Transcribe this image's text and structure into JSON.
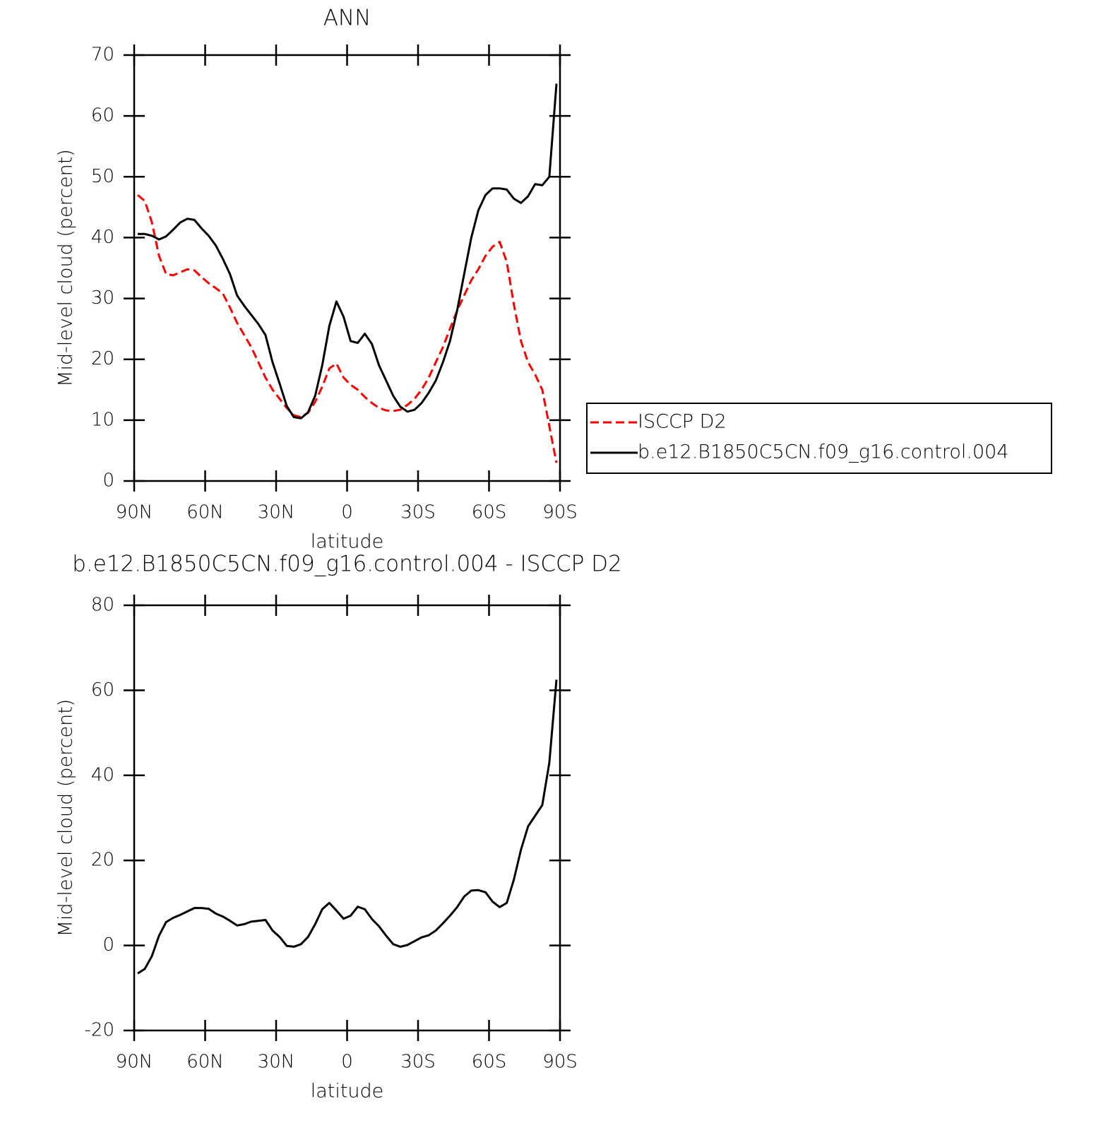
{
  "chart_data": [
    {
      "type": "line",
      "title": "ANN",
      "xlabel": "latitude",
      "ylabel": "Mid-level cloud (percent)",
      "x": [
        88.5,
        85.5,
        82.5,
        79.5,
        76.5,
        73.5,
        70.5,
        67.5,
        64.5,
        61.5,
        58.5,
        55.5,
        52.5,
        49.5,
        46.5,
        43.5,
        40.5,
        37.5,
        34.5,
        31.5,
        28.5,
        25.5,
        22.5,
        19.5,
        16.5,
        13.5,
        10.5,
        7.5,
        4.5,
        1.5,
        -1.5,
        -4.5,
        -7.5,
        -10.5,
        -13.5,
        -16.5,
        -19.5,
        -22.5,
        -25.5,
        -28.5,
        -31.5,
        -34.5,
        -37.5,
        -40.5,
        -43.5,
        -46.5,
        -49.5,
        -52.5,
        -55.5,
        -58.5,
        -61.5,
        -64.5,
        -67.5,
        -70.5,
        -73.5,
        -76.5,
        -79.5,
        -82.5,
        -85.5,
        -88.5
      ],
      "series": [
        {
          "name": "ISCCP D2",
          "color": "#ff0000",
          "style": "dashed",
          "values": [
            47,
            46,
            42.5,
            37,
            34,
            33.8,
            34.3,
            34.8,
            34.6,
            33.5,
            32.5,
            31.7,
            30.8,
            28.5,
            26,
            24,
            22,
            19.5,
            17,
            15,
            13.5,
            12,
            10.8,
            10.5,
            11.2,
            13,
            15.5,
            18.5,
            19.3,
            17,
            15.8,
            15,
            13.8,
            12.8,
            12,
            11.6,
            11.5,
            11.7,
            12.5,
            13.5,
            15,
            17,
            19.5,
            22,
            25,
            28,
            30.5,
            33,
            34.8,
            37,
            38.5,
            39.3,
            36,
            29,
            23,
            19.5,
            17.5,
            15,
            9,
            3
          ]
        },
        {
          "name": "b.e12.B1850C5CN.f09_g16.control.004",
          "color": "#000000",
          "style": "solid",
          "values": [
            40.6,
            40.6,
            40.3,
            39.7,
            40.2,
            41.3,
            42.5,
            43.1,
            42.9,
            41.5,
            40.3,
            38.7,
            36.5,
            34,
            30.5,
            28.8,
            27.3,
            25.8,
            24,
            19.5,
            16,
            12.3,
            10.5,
            10.3,
            11.3,
            14,
            19,
            25.5,
            29.5,
            27,
            23,
            22.7,
            24.2,
            22.5,
            19,
            16.5,
            14,
            12.2,
            11.4,
            11.7,
            12.8,
            14.5,
            16.5,
            19.5,
            23,
            28,
            34,
            40,
            44.5,
            47,
            48.1,
            48.1,
            47.9,
            46.4,
            45.7,
            46.8,
            48.8,
            48.6,
            50,
            65.3
          ]
        }
      ],
      "xlim": [
        90,
        -90
      ],
      "xticks": [
        {
          "value": 90,
          "label": "90N"
        },
        {
          "value": 60,
          "label": "60N"
        },
        {
          "value": 30,
          "label": "30N"
        },
        0,
        {
          "value": -30,
          "label": "30S"
        },
        {
          "value": -60,
          "label": "60S"
        },
        {
          "value": -90,
          "label": "90S"
        }
      ],
      "ylim": [
        0,
        70
      ],
      "yticks": [
        0,
        10,
        20,
        30,
        40,
        50,
        60,
        70
      ],
      "legend": "right"
    },
    {
      "type": "line",
      "title": "b.e12.B1850C5CN.f09_g16.control.004 - ISCCP D2",
      "xlabel": "latitude",
      "ylabel": "Mid-level cloud (percent)",
      "x": [
        88.5,
        85.5,
        82.5,
        79.5,
        76.5,
        73.5,
        70.5,
        67.5,
        64.5,
        61.5,
        58.5,
        55.5,
        52.5,
        49.5,
        46.5,
        43.5,
        40.5,
        37.5,
        34.5,
        31.5,
        28.5,
        25.5,
        22.5,
        19.5,
        16.5,
        13.5,
        10.5,
        7.5,
        4.5,
        1.5,
        -1.5,
        -4.5,
        -7.5,
        -10.5,
        -13.5,
        -16.5,
        -19.5,
        -22.5,
        -25.5,
        -28.5,
        -31.5,
        -34.5,
        -37.5,
        -40.5,
        -43.5,
        -46.5,
        -49.5,
        -52.5,
        -55.5,
        -58.5,
        -61.5,
        -64.5,
        -67.5,
        -70.5,
        -73.5,
        -76.5,
        -79.5,
        -82.5,
        -85.5,
        -88.5
      ],
      "values": [
        -6.6,
        -5.5,
        -2.5,
        2.3,
        5.5,
        6.5,
        7.2,
        8,
        8.8,
        8.8,
        8.6,
        7.5,
        6.8,
        5.8,
        4.7,
        5,
        5.6,
        5.8,
        6,
        3.5,
        2,
        -0.1,
        -0.3,
        0.3,
        2,
        5,
        8.5,
        10,
        8.2,
        6.3,
        7,
        9.1,
        8.5,
        6.2,
        4.5,
        2.3,
        0.3,
        -0.3,
        0.1,
        1,
        1.9,
        2.4,
        3.5,
        5.2,
        7,
        9,
        11.5,
        12.9,
        13,
        12.5,
        10.3,
        9,
        10,
        15.5,
        22.5,
        28,
        30.5,
        33,
        43,
        62.5
      ],
      "color": "#000000",
      "xlim": [
        90,
        -90
      ],
      "xticks": [
        {
          "value": 90,
          "label": "90N"
        },
        {
          "value": 60,
          "label": "60N"
        },
        {
          "value": 30,
          "label": "30N"
        },
        0,
        {
          "value": -30,
          "label": "30S"
        },
        {
          "value": -60,
          "label": "60S"
        },
        {
          "value": -90,
          "label": "90S"
        }
      ],
      "ylim": [
        -20,
        80
      ],
      "yticks": [
        -20,
        0,
        20,
        40,
        60,
        80
      ]
    }
  ]
}
